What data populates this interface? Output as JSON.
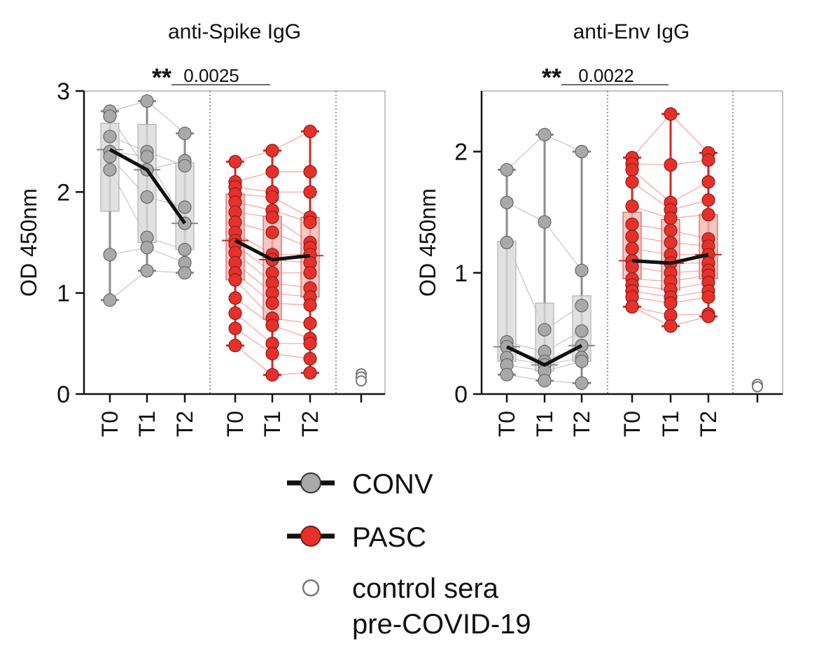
{
  "chart_data": [
    {
      "type": "box",
      "title": "anti-Spike IgG",
      "ylabel": "OD 450nm",
      "ylim": [
        0,
        3
      ],
      "yticks": [
        0,
        1,
        2,
        3
      ],
      "grid": false,
      "timepoints": [
        "T0",
        "T1",
        "T2"
      ],
      "groups": [
        {
          "name": "CONV",
          "color": "#8c8c8c",
          "fill": "#d9d9d9",
          "box_stats": [
            {
              "x": "T0",
              "min": 0.93,
              "q1": 1.81,
              "median": 2.42,
              "q3": 2.68,
              "max": 2.8
            },
            {
              "x": "T1",
              "min": 1.22,
              "q1": 1.5,
              "median": 2.22,
              "q3": 2.67,
              "max": 2.9
            },
            {
              "x": "T2",
              "min": 1.2,
              "q1": 1.43,
              "median": 1.69,
              "q3": 2.29,
              "max": 2.58
            }
          ],
          "median_line": [
            2.42,
            2.22,
            1.69
          ],
          "subjects": [
            [
              2.8,
              2.9,
              2.58
            ],
            [
              2.75,
              2.22,
              2.31
            ],
            [
              2.55,
              2.4,
              2.26
            ],
            [
              2.4,
              2.35,
              1.69
            ],
            [
              2.35,
              1.95,
              1.85
            ],
            [
              2.22,
              1.55,
              1.43
            ],
            [
              1.38,
              1.45,
              1.3
            ],
            [
              0.93,
              1.22,
              1.2
            ]
          ]
        },
        {
          "name": "PASC",
          "color": "#e8302a",
          "fill": "#f3b8b3",
          "box_stats": [
            {
              "x": "T0",
              "min": 0.48,
              "q1": 1.13,
              "median": 1.52,
              "q3": 1.98,
              "max": 2.3
            },
            {
              "x": "T1",
              "min": 0.19,
              "q1": 0.74,
              "median": 1.33,
              "q3": 1.76,
              "max": 2.41
            },
            {
              "x": "T2",
              "min": 0.21,
              "q1": 0.96,
              "median": 1.37,
              "q3": 1.75,
              "max": 2.6
            }
          ],
          "median_line": [
            1.52,
            1.33,
            1.37
          ],
          "subjects": [
            [
              2.3,
              2.41,
              2.6
            ],
            [
              2.1,
              2.2,
              2.2
            ],
            [
              2.05,
              2.0,
              2.0
            ],
            [
              1.98,
              1.95,
              1.75
            ],
            [
              1.9,
              1.82,
              1.7
            ],
            [
              1.8,
              1.75,
              1.5
            ],
            [
              1.7,
              1.6,
              1.45
            ],
            [
              1.6,
              1.38,
              1.38
            ],
            [
              1.52,
              1.33,
              1.3
            ],
            [
              1.48,
              1.2,
              1.2
            ],
            [
              1.4,
              1.1,
              1.05
            ],
            [
              1.3,
              1.0,
              0.96
            ],
            [
              1.2,
              0.9,
              0.88
            ],
            [
              1.13,
              0.75,
              0.7
            ],
            [
              0.95,
              0.68,
              0.55
            ],
            [
              0.8,
              0.5,
              0.5
            ],
            [
              0.65,
              0.4,
              0.35
            ],
            [
              0.48,
              0.19,
              0.21
            ]
          ]
        }
      ],
      "control_sera": [
        0.2,
        0.17,
        0.13
      ],
      "significance": {
        "label": "**",
        "p": "0.0025",
        "from": 0,
        "to": 1
      }
    },
    {
      "type": "box",
      "title": "anti-Env IgG",
      "ylabel": "OD 450nm",
      "ylim": [
        0,
        2.5
      ],
      "yticks": [
        0,
        1,
        2
      ],
      "grid": false,
      "timepoints": [
        "T0",
        "T1",
        "T2"
      ],
      "groups": [
        {
          "name": "CONV",
          "color": "#8c8c8c",
          "fill": "#d9d9d9",
          "box_stats": [
            {
              "x": "T0",
              "min": 0.16,
              "q1": 0.27,
              "median": 0.39,
              "q3": 1.26,
              "max": 1.85
            },
            {
              "x": "T1",
              "min": 0.11,
              "q1": 0.19,
              "median": 0.24,
              "q3": 0.75,
              "max": 2.14
            },
            {
              "x": "T2",
              "min": 0.09,
              "q1": 0.27,
              "median": 0.4,
              "q3": 0.81,
              "max": 2.0
            }
          ],
          "median_line": [
            0.39,
            0.24,
            0.4
          ],
          "subjects": [
            [
              1.85,
              2.14,
              2.0
            ],
            [
              1.58,
              1.42,
              1.02
            ],
            [
              1.25,
              0.53,
              0.73
            ],
            [
              0.43,
              0.35,
              0.52
            ],
            [
              0.39,
              0.27,
              0.4
            ],
            [
              0.3,
              0.24,
              0.3
            ],
            [
              0.24,
              0.19,
              0.27
            ],
            [
              0.16,
              0.11,
              0.09
            ]
          ]
        },
        {
          "name": "PASC",
          "color": "#e8302a",
          "fill": "#f3b8b3",
          "box_stats": [
            {
              "x": "T0",
              "min": 0.72,
              "q1": 0.95,
              "median": 1.1,
              "q3": 1.5,
              "max": 1.95
            },
            {
              "x": "T1",
              "min": 0.56,
              "q1": 0.86,
              "median": 1.08,
              "q3": 1.44,
              "max": 2.31
            },
            {
              "x": "T2",
              "min": 0.64,
              "q1": 0.95,
              "median": 1.15,
              "q3": 1.48,
              "max": 1.99
            }
          ],
          "median_line": [
            1.1,
            1.08,
            1.15
          ],
          "subjects": [
            [
              1.95,
              2.31,
              1.99
            ],
            [
              1.9,
              1.89,
              1.93
            ],
            [
              1.85,
              1.58,
              1.75
            ],
            [
              1.75,
              1.52,
              1.6
            ],
            [
              1.55,
              1.45,
              1.48
            ],
            [
              1.4,
              1.35,
              1.28
            ],
            [
              1.3,
              1.25,
              1.22
            ],
            [
              1.2,
              1.15,
              1.15
            ],
            [
              1.1,
              1.08,
              1.08
            ],
            [
              1.05,
              1.0,
              1.02
            ],
            [
              0.95,
              0.93,
              0.98
            ],
            [
              0.9,
              0.86,
              0.92
            ],
            [
              0.85,
              0.8,
              0.85
            ],
            [
              0.8,
              0.75,
              0.8
            ],
            [
              0.72,
              0.65,
              0.66
            ],
            [
              0.72,
              0.56,
              0.64
            ]
          ]
        }
      ],
      "control_sera": [
        0.08,
        0.06
      ],
      "significance": {
        "label": "**",
        "p": "0.0022",
        "from": 0,
        "to": 1
      }
    }
  ],
  "legend": {
    "items": [
      {
        "label": "CONV",
        "marker": "filled-circle-line",
        "color": "#8c8c8c"
      },
      {
        "label": "PASC",
        "marker": "filled-circle-line",
        "color": "#e8302a"
      },
      {
        "label_lines": [
          "control sera",
          "pre-COVID-19"
        ],
        "marker": "open-circle",
        "color": "#777777"
      }
    ]
  }
}
